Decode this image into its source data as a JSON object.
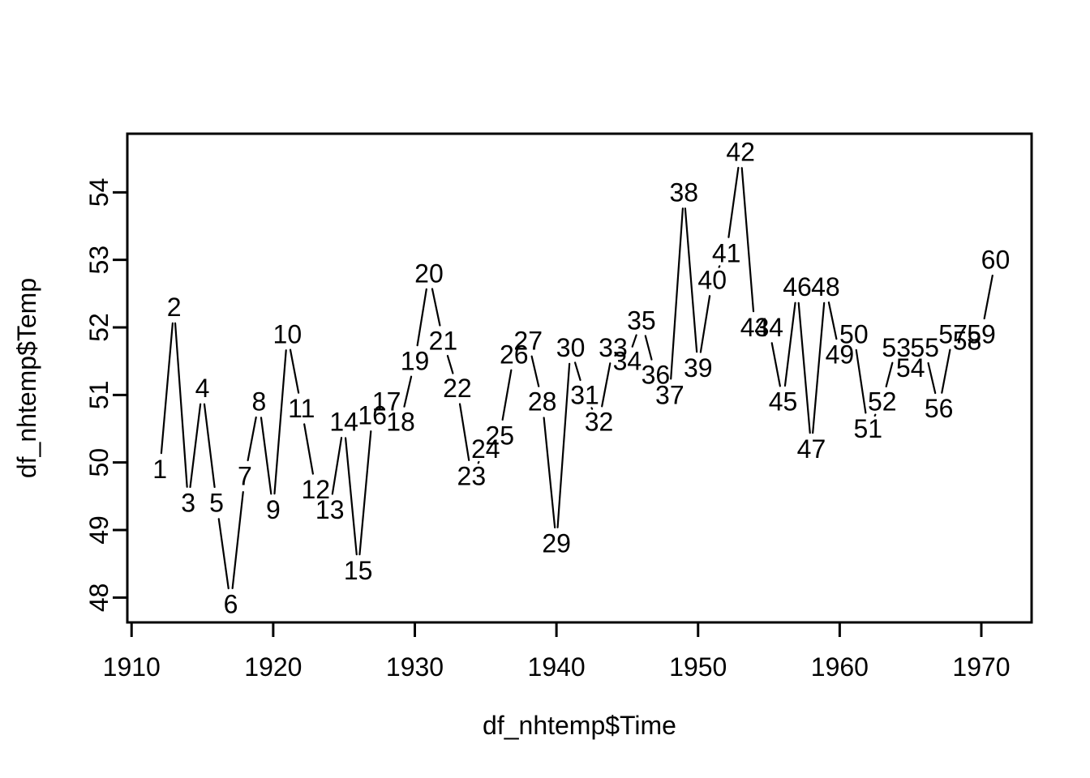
{
  "figure": {
    "background_color": "#ffffff",
    "foreground_color": "#000000",
    "title": ""
  },
  "chart_data": {
    "type": "line",
    "style": "r-base-plot, gapped line segments (type='c') with numeric labels centered on each data point",
    "title": "",
    "xlabel": "df_nhtemp$Time",
    "ylabel": "df_nhtemp$Temp",
    "grid": false,
    "legend_position": "none",
    "xlim": [
      1909.7,
      1973.55
    ],
    "ylim": [
      47.632,
      54.868
    ],
    "x_ticks": [
      1910,
      1920,
      1930,
      1940,
      1950,
      1960,
      1970
    ],
    "y_ticks": [
      48,
      49,
      50,
      51,
      52,
      53,
      54
    ],
    "line_color": "#000000",
    "label_color": "#000000",
    "series": [
      {
        "name": "df_nhtemp",
        "x": [
          1912,
          1913,
          1914,
          1915,
          1916,
          1917,
          1918,
          1919,
          1920,
          1921,
          1922,
          1923,
          1924,
          1925,
          1926,
          1927,
          1928,
          1929,
          1930,
          1931,
          1932,
          1933,
          1934,
          1935,
          1936,
          1937,
          1938,
          1939,
          1940,
          1941,
          1942,
          1943,
          1944,
          1945,
          1946,
          1947,
          1948,
          1949,
          1950,
          1951,
          1952,
          1953,
          1954,
          1955,
          1956,
          1957,
          1958,
          1959,
          1960,
          1961,
          1962,
          1963,
          1964,
          1965,
          1966,
          1967,
          1968,
          1969,
          1970,
          1971
        ],
        "y": [
          49.9,
          52.3,
          49.4,
          51.1,
          49.4,
          47.9,
          49.8,
          50.9,
          49.3,
          51.9,
          50.8,
          49.6,
          49.3,
          50.6,
          48.4,
          50.7,
          50.9,
          50.6,
          51.5,
          52.8,
          51.8,
          51.1,
          49.8,
          50.2,
          50.4,
          51.6,
          51.8,
          50.9,
          48.8,
          51.7,
          51.0,
          50.6,
          51.7,
          51.5,
          52.1,
          51.3,
          51.0,
          54.0,
          51.4,
          52.7,
          53.1,
          54.6,
          52.0,
          52.0,
          50.9,
          52.6,
          50.2,
          52.6,
          51.6,
          51.9,
          50.5,
          50.9,
          51.7,
          51.4,
          51.7,
          50.8,
          51.9,
          51.8,
          51.9,
          53.0
        ],
        "point_labels": [
          "1",
          "2",
          "3",
          "4",
          "5",
          "6",
          "7",
          "8",
          "9",
          "10",
          "11",
          "12",
          "13",
          "14",
          "15",
          "16",
          "17",
          "18",
          "19",
          "20",
          "21",
          "22",
          "23",
          "24",
          "25",
          "26",
          "27",
          "28",
          "29",
          "30",
          "31",
          "32",
          "33",
          "34",
          "35",
          "36",
          "37",
          "38",
          "39",
          "40",
          "41",
          "42",
          "43",
          "44",
          "45",
          "46",
          "47",
          "48",
          "49",
          "50",
          "51",
          "52",
          "53",
          "54",
          "55",
          "56",
          "57",
          "58",
          "59",
          "60"
        ]
      }
    ]
  }
}
